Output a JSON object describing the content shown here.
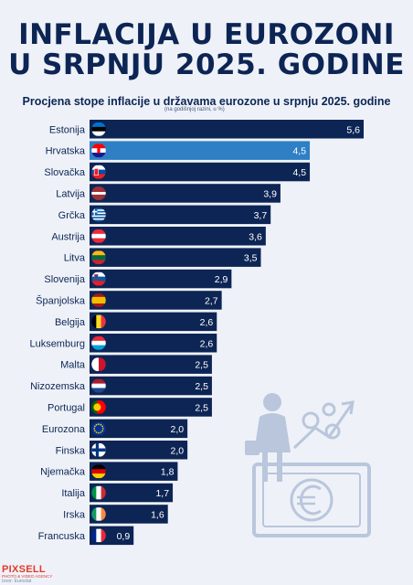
{
  "header": {
    "title_line1": "INFLACIJA U EUROZONI",
    "title_line2": "U SRPNJU 2025. GODINE"
  },
  "chart_data": {
    "type": "bar",
    "orientation": "horizontal",
    "title": "Procjena stope inflacije u državama eurozone u srpnju 2025. godine",
    "subtitle": "(na godišnjoj razini, u %)",
    "categories": [
      "Estonija",
      "Hrvatska",
      "Slovačka",
      "Latvija",
      "Grčka",
      "Austrija",
      "Litva",
      "Slovenija",
      "Španjolska",
      "Belgija",
      "Luksemburg",
      "Malta",
      "Nizozemska",
      "Portugal",
      "Eurozona",
      "Finska",
      "Njemačka",
      "Italija",
      "Irska",
      "Francuska"
    ],
    "values": [
      5.6,
      4.5,
      4.5,
      3.9,
      3.7,
      3.6,
      3.5,
      2.9,
      2.7,
      2.6,
      2.6,
      2.5,
      2.5,
      2.5,
      2.0,
      2.0,
      1.8,
      1.7,
      1.6,
      0.9
    ],
    "value_labels": [
      "5,6",
      "4,5",
      "4,5",
      "3,9",
      "3,7",
      "3,6",
      "3,5",
      "2,9",
      "2,7",
      "2,6",
      "2,6",
      "2,5",
      "2,5",
      "2,5",
      "2,0",
      "2,0",
      "1,8",
      "1,7",
      "1,6",
      "0,9"
    ],
    "flags": [
      "estonia",
      "croatia",
      "slovakia",
      "latvia",
      "greece",
      "austria",
      "lithuania",
      "slovenia",
      "spain",
      "belgium",
      "luxembourg",
      "malta",
      "netherlands",
      "portugal",
      "eu",
      "finland",
      "germany",
      "italy",
      "ireland",
      "france"
    ],
    "highlight": "Hrvatska",
    "xlim": [
      0,
      5.6
    ],
    "grid": false,
    "legend": "none",
    "colors": {
      "bar": "#0d2554",
      "highlight": "#2e7fc4",
      "label": "#0d2554",
      "value": "#ffffff"
    }
  },
  "footer": {
    "logo": "PIXSELL",
    "tagline": "PHOTO & VIDEO AGENCY",
    "source": "Izvor: Eurostat"
  },
  "decoration": {
    "icons": [
      "woman-shopper-icon",
      "inflation-arrow-icon",
      "euro-banknote-icon"
    ]
  }
}
